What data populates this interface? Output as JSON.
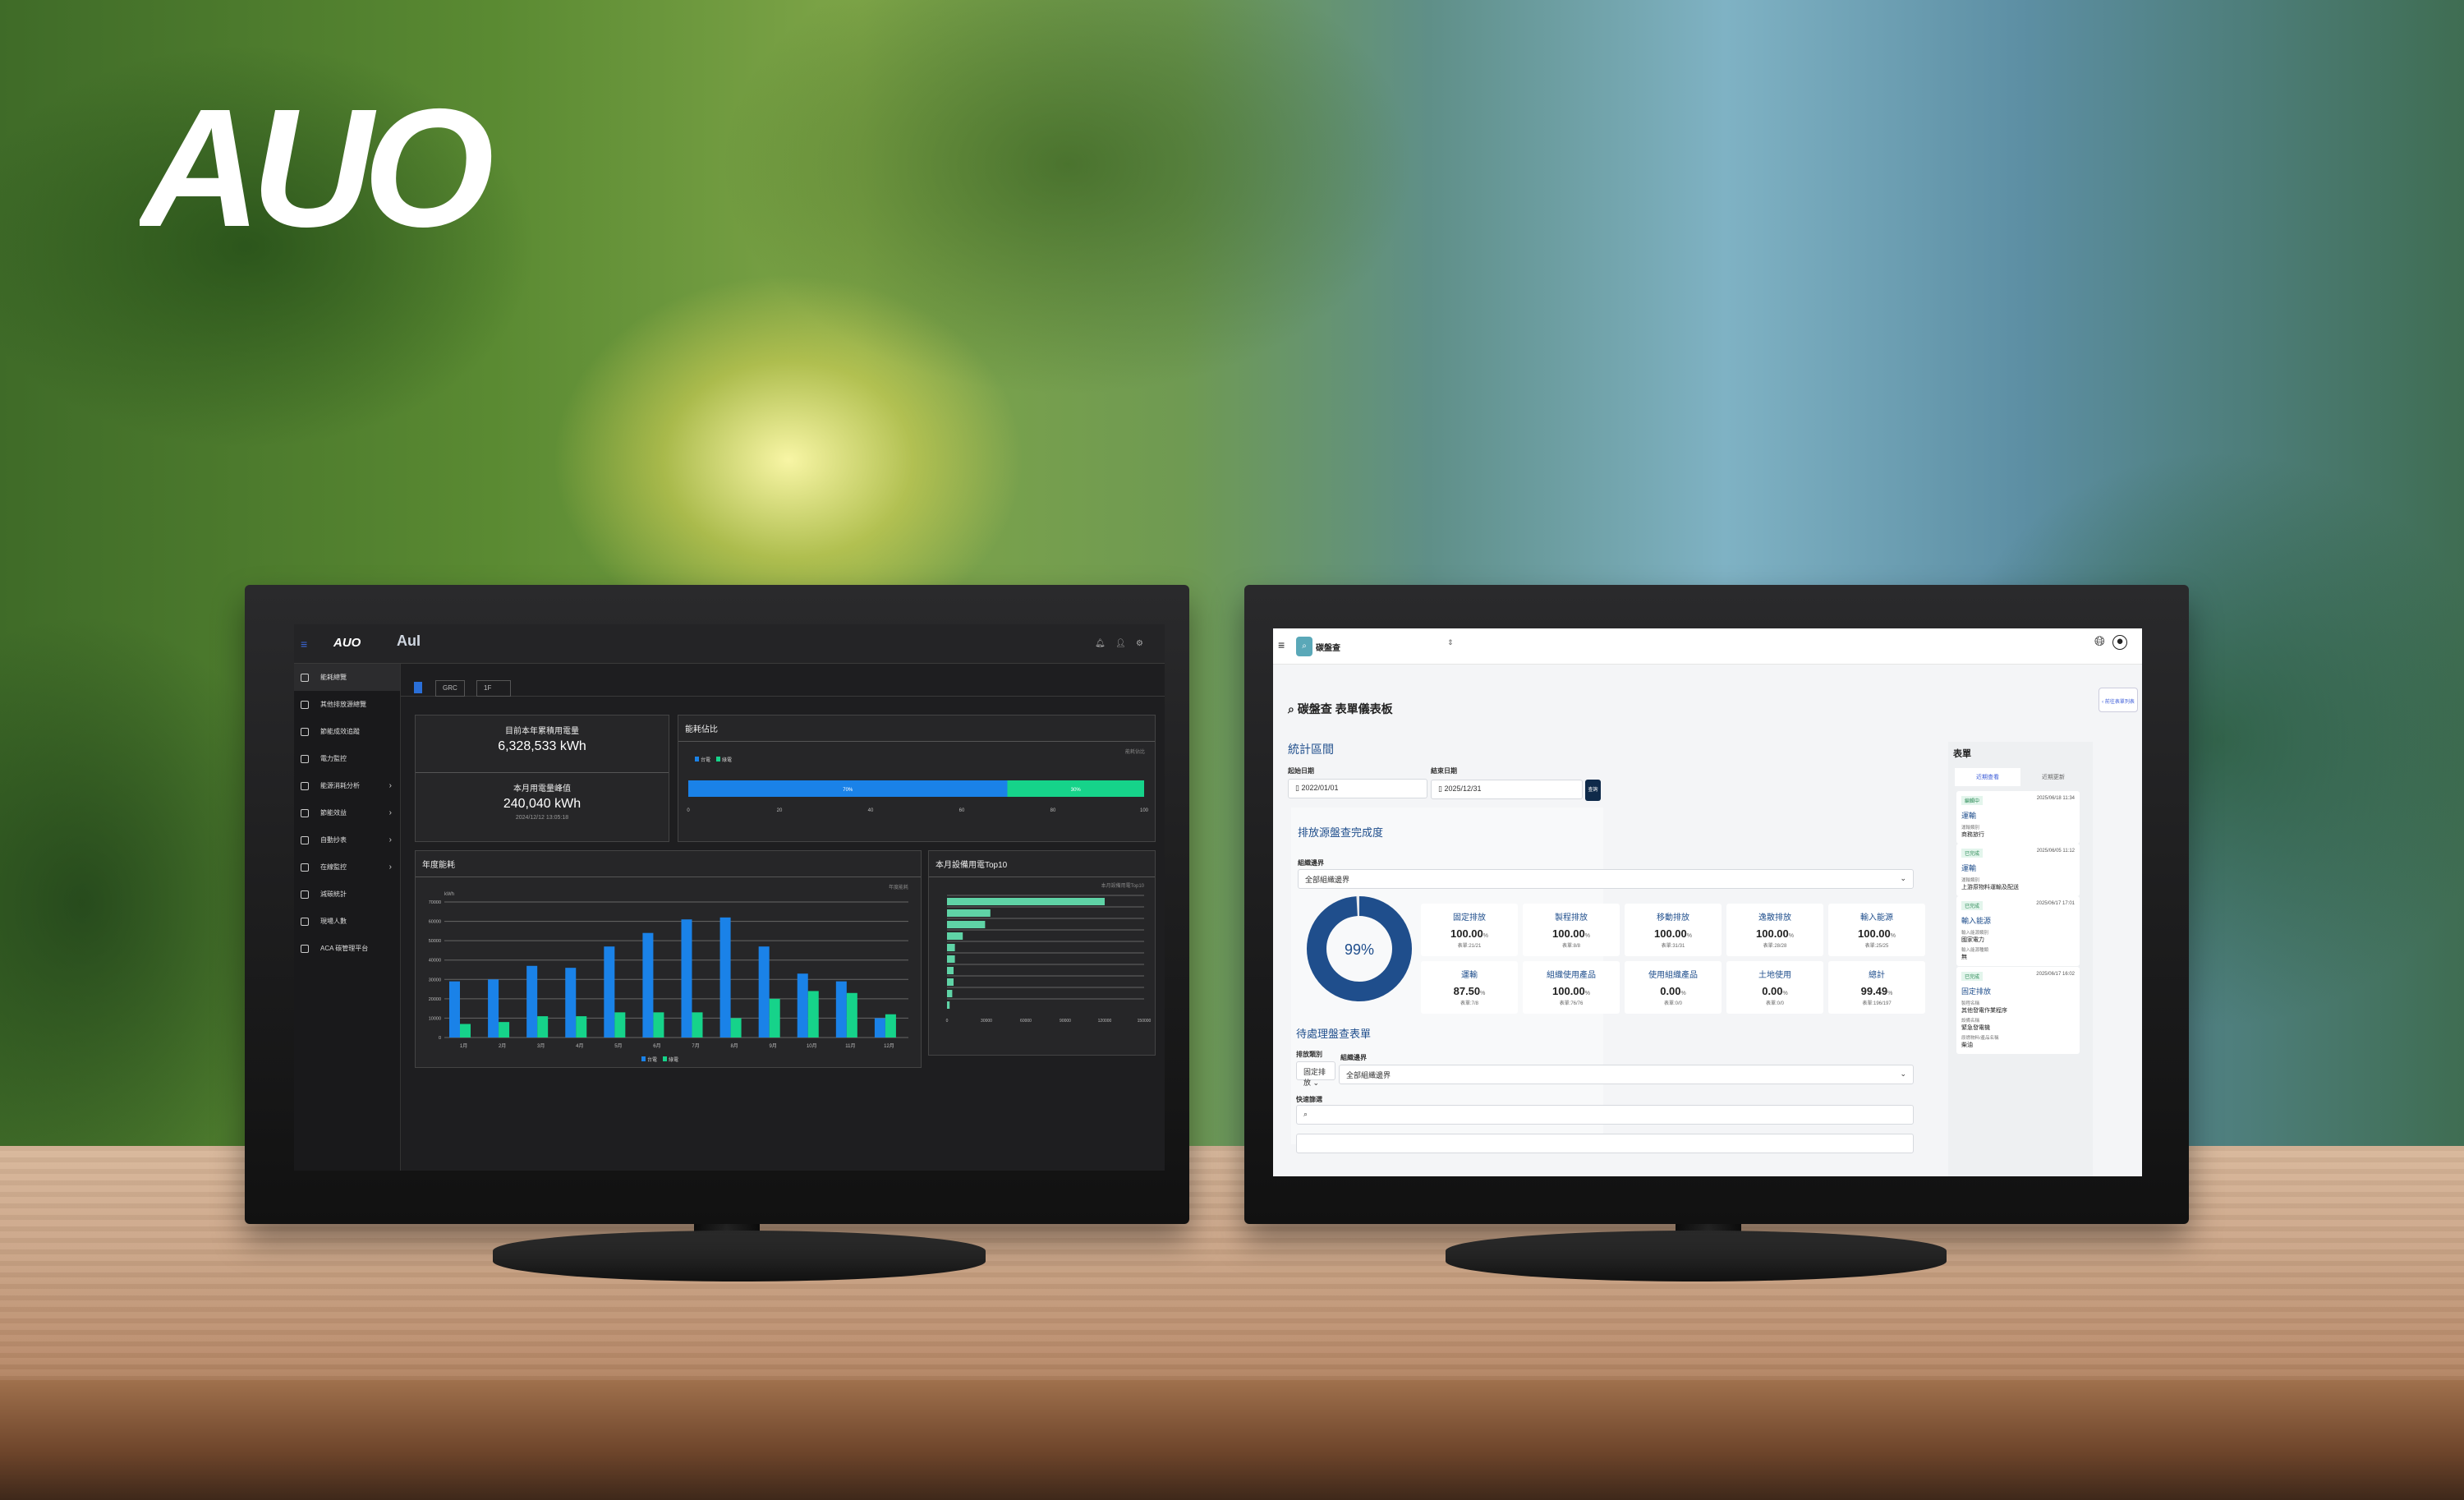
{
  "brand": {
    "logo_text": "AUO"
  },
  "left_app": {
    "header": {
      "logo": "AUO",
      "sub_logo": "AuI"
    },
    "filters": [
      "GRC",
      "1F"
    ],
    "sidebar": [
      {
        "label": "能耗總覽",
        "icon": "grid-icon",
        "active": true
      },
      {
        "label": "其他排放源總覽",
        "icon": "table-icon"
      },
      {
        "label": "節能成效追蹤",
        "icon": "checklist-icon"
      },
      {
        "label": "電力監控",
        "icon": "gauge-icon"
      },
      {
        "label": "能源消耗分析",
        "icon": "bar-chart-icon",
        "submenu": true
      },
      {
        "label": "節能效益",
        "icon": "device-icon",
        "submenu": true
      },
      {
        "label": "自動抄表",
        "icon": "meter-icon",
        "submenu": true
      },
      {
        "label": "在線監控",
        "icon": "monitor-icon",
        "submenu": true
      },
      {
        "label": "減碳統計",
        "icon": "recycle-icon"
      },
      {
        "label": "現場人數",
        "icon": "person-icon"
      },
      {
        "label": "ACA 碳管理平台",
        "icon": "bookmark-icon"
      }
    ],
    "summary": {
      "year_label": "目前本年累積用電量",
      "year_value": "6,328,533 kWh",
      "peak_label": "本月用電量峰值",
      "peak_value": "240,040 kWh",
      "peak_time": "2024/12/12 13:05:18"
    },
    "ratio_card": {
      "title": "能耗佔比"
    },
    "annual_card": {
      "title": "年度能耗"
    },
    "top10_card": {
      "title": "本月設備用電Top10"
    }
  },
  "chart_data": [
    {
      "type": "bar",
      "orientation": "horizontal-stacked",
      "title": "能耗佔比",
      "legend": [
        "台電",
        "綠電"
      ],
      "legend_placement": "top-left",
      "series": [
        {
          "name": "台電",
          "values": [
            70
          ],
          "color": "#1a82e8"
        },
        {
          "name": "綠電",
          "values": [
            30
          ],
          "color": "#16d38a"
        }
      ],
      "xlim": [
        0,
        100
      ],
      "xticks": [
        0,
        20,
        40,
        60,
        80,
        100
      ]
    },
    {
      "type": "bar",
      "title": "年度能耗",
      "ylabel": "kWh",
      "categories": [
        "1月",
        "2月",
        "3月",
        "4月",
        "5月",
        "6月",
        "7月",
        "8月",
        "9月",
        "10月",
        "11月",
        "12月"
      ],
      "series": [
        {
          "name": "台電",
          "values": [
            29000,
            30000,
            37000,
            36000,
            47000,
            54000,
            61000,
            62000,
            47000,
            33000,
            29000,
            10000
          ],
          "color": "#1a82e8"
        },
        {
          "name": "綠電",
          "values": [
            7000,
            8000,
            11000,
            11000,
            13000,
            13000,
            13000,
            10000,
            20000,
            24000,
            23000,
            12000
          ],
          "color": "#16d38a"
        }
      ],
      "ylim": [
        0,
        70000
      ],
      "yticks": [
        0,
        10000,
        20000,
        30000,
        40000,
        50000,
        60000,
        70000
      ],
      "legend_placement": "bottom",
      "grid": true
    },
    {
      "type": "bar",
      "orientation": "horizontal",
      "title": "本月設備用電Top10",
      "values": [
        120000,
        33000,
        29000,
        12000,
        6000,
        6000,
        5000,
        5000,
        4000,
        2000
      ],
      "color": "#5fd3a6",
      "xlim": [
        0,
        150000
      ],
      "xticks": [
        0,
        30000,
        60000,
        90000,
        120000,
        150000
      ],
      "grid": true
    }
  ],
  "right_app": {
    "app_name": "碳盤查",
    "page_title": "碳盤查 表單儀表板",
    "back_button": "前往表單列表",
    "period": {
      "title": "統計區間",
      "start_label": "起始日期",
      "start_value": "2022/01/01",
      "end_label": "結束日期",
      "end_value": "2025/12/31",
      "query": "查詢"
    },
    "completion": {
      "title": "排放源盤查完成度",
      "org_label": "組織邊界",
      "org_value": "全部組織邊界",
      "donut_value": "99%",
      "donut_fraction": 0.99,
      "color": "#1f4e8c",
      "stats": [
        {
          "name": "固定排放",
          "value": "100.00",
          "forms": "表單:21/21"
        },
        {
          "name": "製程排放",
          "value": "100.00",
          "forms": "表單:8/8"
        },
        {
          "name": "移動排放",
          "value": "100.00",
          "forms": "表單:31/31"
        },
        {
          "name": "逸散排放",
          "value": "100.00",
          "forms": "表單:28/28"
        },
        {
          "name": "輸入能源",
          "value": "100.00",
          "forms": "表單:25/25"
        },
        {
          "name": "運輸",
          "value": "87.50",
          "forms": "表單:7/8"
        },
        {
          "name": "組織使用產品",
          "value": "100.00",
          "forms": "表單:76/76"
        },
        {
          "name": "使用組織產品",
          "value": "0.00",
          "forms": "表單:0/0"
        },
        {
          "name": "土地使用",
          "value": "0.00",
          "forms": "表單:0/0"
        },
        {
          "name": "總計",
          "value": "99.49",
          "forms": "表單:196/197"
        }
      ],
      "unit": "%"
    },
    "pending": {
      "title": "待處理盤查表單",
      "type_label": "排放類別",
      "type_value": "固定排放",
      "org_label": "組織邊界",
      "org_value": "全部組織邊界",
      "search_label": "快速篩選"
    },
    "forms_panel": {
      "title": "表單",
      "tabs": [
        "近期查看",
        "近期更新"
      ],
      "cards": [
        {
          "status": "編輯中",
          "time": "2025/06/18 11:34",
          "title": "運輸",
          "fields": [
            {
              "label": "運輸類別",
              "value": "商務旅行"
            }
          ]
        },
        {
          "status": "已完成",
          "time": "2025/06/05 11:12",
          "title": "運輸",
          "fields": [
            {
              "label": "運輸類別",
              "value": "上游原物料運輸及配送"
            }
          ]
        },
        {
          "status": "已完成",
          "time": "2025/06/17 17:01",
          "title": "輸入能源",
          "fields": [
            {
              "label": "輸入能源類別",
              "value": "國家電力"
            },
            {
              "label": "輸入能源種類",
              "value": "無"
            }
          ]
        },
        {
          "status": "已完成",
          "time": "2025/06/17 16:02",
          "title": "固定排放",
          "fields": [
            {
              "label": "製程名稱",
              "value": "其他發電作業程序"
            },
            {
              "label": "設備名稱",
              "value": "緊急發電機"
            },
            {
              "label": "原燃物料/產品名稱",
              "value": "柴油"
            }
          ]
        }
      ]
    }
  }
}
